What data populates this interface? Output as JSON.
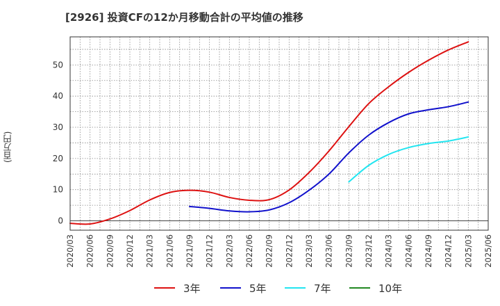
{
  "chart_data": {
    "type": "line",
    "title": "[2926]  投資CFの12か月移動合計の平均値の推移",
    "xlabel": "",
    "ylabel": "(百万円)",
    "x": [
      "2020/03",
      "2020/06",
      "2020/09",
      "2020/12",
      "2021/03",
      "2021/06",
      "2021/09",
      "2021/12",
      "2022/03",
      "2022/06",
      "2022/09",
      "2022/12",
      "2023/03",
      "2023/06",
      "2023/09",
      "2023/12",
      "2024/03",
      "2024/06",
      "2024/09",
      "2024/12",
      "2025/03",
      "2025/06"
    ],
    "ylim": [
      -3,
      59
    ],
    "yticks": [
      0,
      10,
      20,
      30,
      40,
      50
    ],
    "grid": true,
    "legend_position": "bottom",
    "series": [
      {
        "name": "3年",
        "color": "#dd1111",
        "values": [
          -0.8,
          -1.0,
          0.6,
          3.3,
          6.7,
          9.1,
          9.8,
          9.2,
          7.5,
          6.6,
          6.8,
          9.9,
          15.5,
          22.4,
          30.2,
          37.6,
          43.0,
          47.6,
          51.5,
          54.8,
          57.4,
          null
        ]
      },
      {
        "name": "5年",
        "color": "#1111cc",
        "values": [
          null,
          null,
          null,
          null,
          null,
          null,
          4.6,
          4.0,
          3.2,
          2.9,
          3.5,
          5.8,
          9.8,
          15.0,
          21.8,
          27.5,
          31.5,
          34.3,
          35.6,
          36.6,
          38.1,
          null
        ]
      },
      {
        "name": "7年",
        "color": "#22e5f0",
        "values": [
          null,
          null,
          null,
          null,
          null,
          null,
          null,
          null,
          null,
          null,
          null,
          null,
          null,
          null,
          12.5,
          17.8,
          21.3,
          23.5,
          24.8,
          25.6,
          26.9,
          null
        ]
      },
      {
        "name": "10年",
        "color": "#228822",
        "values": [
          null,
          null,
          null,
          null,
          null,
          null,
          null,
          null,
          null,
          null,
          null,
          null,
          null,
          null,
          null,
          null,
          null,
          null,
          null,
          null,
          null,
          null
        ]
      }
    ]
  }
}
